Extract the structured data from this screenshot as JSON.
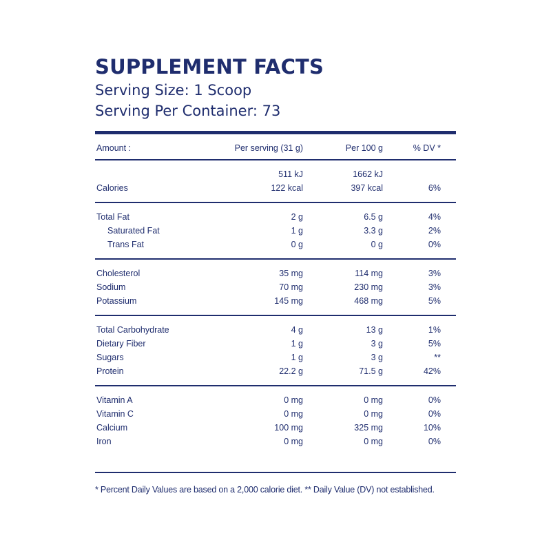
{
  "title": "SUPPLEMENT FACTS",
  "serving_size": "Serving Size: 1 Scoop",
  "servings_per_container": "Serving Per Container: 73",
  "header": {
    "amount": "Amount :",
    "per_serving": "Per serving (31 g)",
    "per_100g": "Per 100 g",
    "dv": "% DV *"
  },
  "energy": {
    "kj_serving": "511 kJ",
    "kj_100g": "1662 kJ",
    "name": "Calories",
    "kcal_serving": "122 kcal",
    "kcal_100g": "397 kcal",
    "dv": "6%"
  },
  "fats": [
    {
      "name": "Total Fat",
      "serving": "2 g",
      "per100": "6.5 g",
      "dv": "4%"
    },
    {
      "name": "Saturated Fat",
      "serving": "1 g",
      "per100": "3.3 g",
      "dv": "2%"
    },
    {
      "name": "Trans Fat",
      "serving": "0 g",
      "per100": "0 g",
      "dv": "0%"
    }
  ],
  "minerals": [
    {
      "name": "Cholesterol",
      "serving": "35 mg",
      "per100": "114 mg",
      "dv": "3%"
    },
    {
      "name": "Sodium",
      "serving": "70 mg",
      "per100": "230 mg",
      "dv": "3%"
    },
    {
      "name": "Potassium",
      "serving": "145 mg",
      "per100": "468 mg",
      "dv": "5%"
    }
  ],
  "carbs": [
    {
      "name": "Total Carbohydrate",
      "serving": "4 g",
      "per100": "13 g",
      "dv": "1%"
    },
    {
      "name": "Dietary Fiber",
      "serving": "1 g",
      "per100": "3 g",
      "dv": "5%"
    },
    {
      "name": "Sugars",
      "serving": "1 g",
      "per100": "3 g",
      "dv": "**"
    },
    {
      "name": "Protein",
      "serving": "22.2 g",
      "per100": "71.5 g",
      "dv": "42%"
    }
  ],
  "vitamins": [
    {
      "name": "Vitamin A",
      "serving": "0 mg",
      "per100": "0 mg",
      "dv": "0%"
    },
    {
      "name": "Vitamin C",
      "serving": "0 mg",
      "per100": "0 mg",
      "dv": "0%"
    },
    {
      "name": "Calcium",
      "serving": "100 mg",
      "per100": "325 mg",
      "dv": "10%"
    },
    {
      "name": "Iron",
      "serving": "0 mg",
      "per100": "0 mg",
      "dv": "0%"
    }
  ],
  "footnote": "* Percent Daily Values are based on a 2,000 calorie diet. ** Daily Value (DV) not established."
}
